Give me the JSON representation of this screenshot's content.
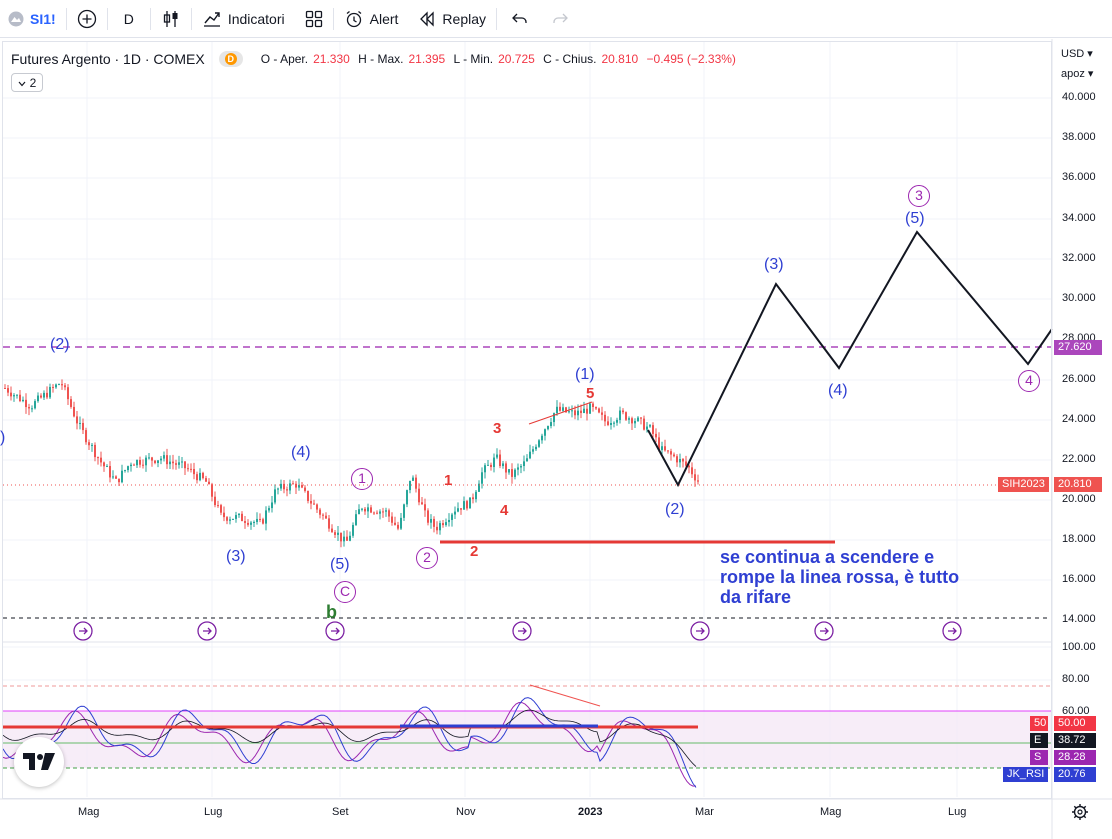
{
  "toolbar": {
    "symbol": "SI1!",
    "interval": "D",
    "indicators_label": "Indicatori",
    "alert_label": "Alert",
    "replay_label": "Replay"
  },
  "legend": {
    "title": "Futures Argento · 1D · COMEX",
    "badge": "D",
    "o_label": "O - Aper.",
    "o_value": "21.330",
    "h_label": "H - Max.",
    "h_value": "21.395",
    "l_label": "L - Min.",
    "l_value": "20.725",
    "c_label": "C - Chius.",
    "c_value": "20.810",
    "change": "−0.495 (−2.33%)",
    "collapse_count": "2"
  },
  "price_axis": {
    "currency": "USD",
    "scale": "apoz",
    "ticks": [
      "40.000",
      "38.000",
      "36.000",
      "34.000",
      "32.000",
      "30.000",
      "28.000",
      "26.000",
      "24.000",
      "22.000",
      "20.000",
      "18.000",
      "16.000",
      "14.000"
    ],
    "level_tag": "27.620",
    "symbol_tag": "SIH2023",
    "last_price": "20.810"
  },
  "rsi_axis": {
    "ticks": [
      "100.00",
      "80.00",
      "60.00"
    ],
    "tag_50_label": "50",
    "tag_50_value": "50.00",
    "tag_e_label": "E",
    "tag_e_value": "38.72",
    "tag_s_label": "S",
    "tag_s_value": "28.28",
    "tag_rsi_label": "JK_RSI",
    "tag_rsi_value": "20.76"
  },
  "time_axis": [
    "Mag",
    "Lug",
    "Set",
    "Nov",
    "2023",
    "Mar",
    "Mag",
    "Lug"
  ],
  "wave_labels": {
    "w2_top": "(2)",
    "w3_low": "(3)",
    "w4_top": "(4)",
    "w5_low": "(5)",
    "c_circle": "C",
    "b_green": "b",
    "one_circle": "1",
    "two_circle": "2",
    "r1": "1",
    "r2": "2",
    "r3": "3",
    "r4": "4",
    "r5": "5",
    "w1_high": "(1)",
    "w2_proj": "(2)",
    "w3_proj": "(3)",
    "w4_proj": "(4)",
    "w5_proj": "(5)",
    "three_circle": "3",
    "four_circle": "4",
    "left_edge": ")"
  },
  "annotation": {
    "line1": "se continua a scendere e",
    "line2": "rompe la linea rossa, è tutto",
    "line3": "da rifare"
  },
  "colors": {
    "up": "#26a69a",
    "down": "#ef5350",
    "accent": "#2962ff",
    "wave_blue": "#2f3fd2",
    "wave_purple": "#9c27b0",
    "wave_red": "#e53935",
    "level_purple": "#ab47bc",
    "rsi_fill": "#f3e5f5"
  }
}
